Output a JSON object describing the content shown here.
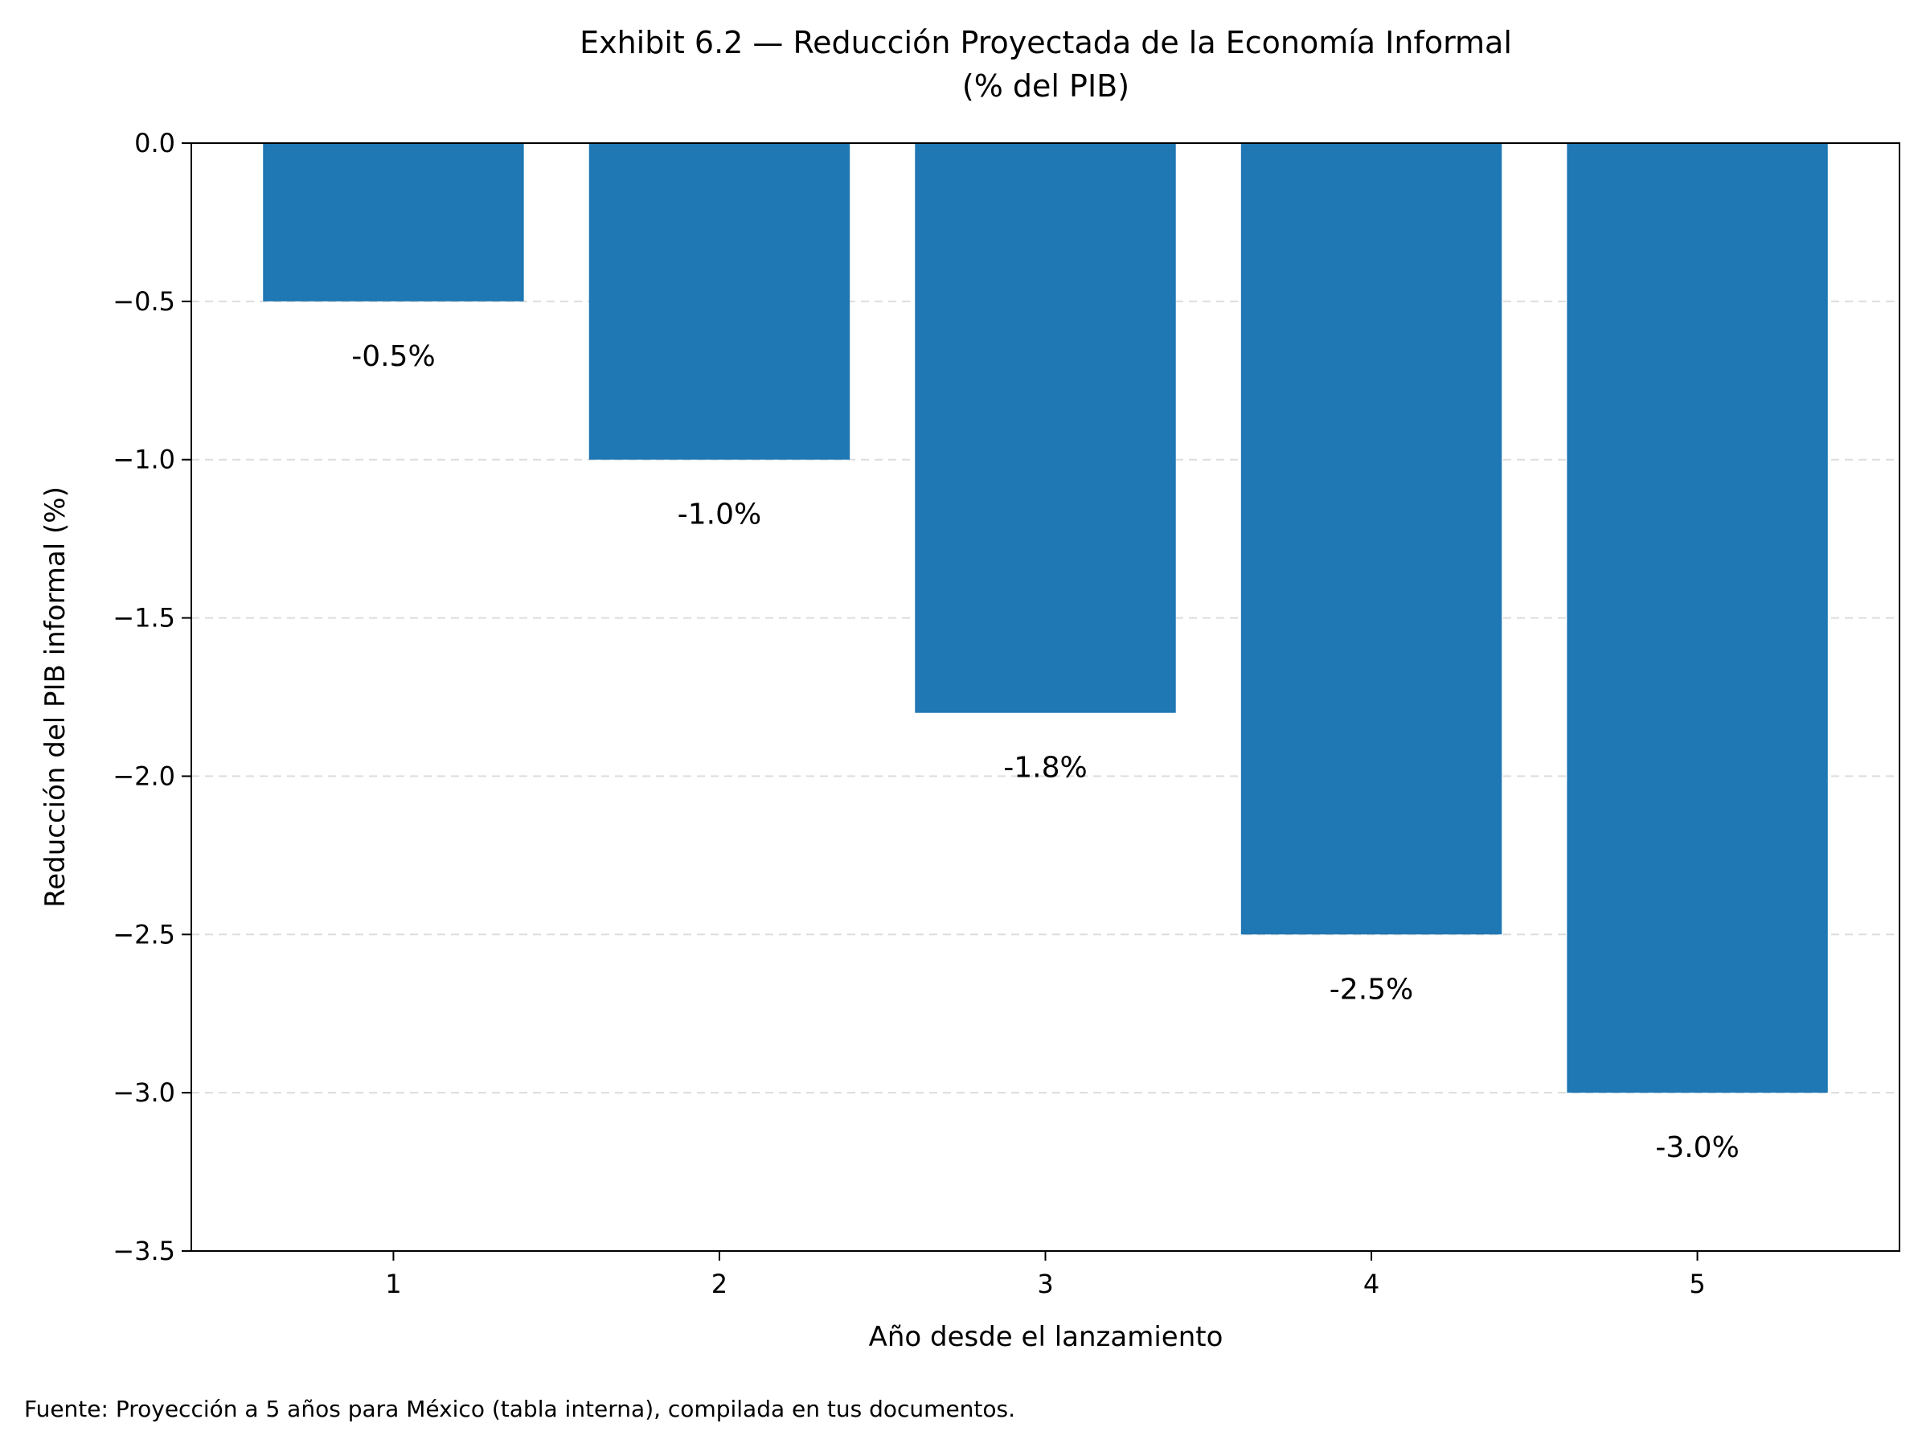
{
  "chart_data": {
    "type": "bar",
    "title": "Exhibit 6.2 — Reducción Proyectada de la Economía Informal",
    "subtitle": "(% del PIB)",
    "xlabel": "Año desde el lanzamiento",
    "ylabel": "Reducción del PIB informal (%)",
    "categories": [
      "1",
      "2",
      "3",
      "4",
      "5"
    ],
    "values": [
      -0.5,
      -1.0,
      -1.8,
      -2.5,
      -3.0
    ],
    "data_labels": [
      "-0.5%",
      "-1.0%",
      "-1.8%",
      "-2.5%",
      "-3.0%"
    ],
    "ylim": [
      -3.5,
      0.0
    ],
    "yticks": [
      0.0,
      -0.5,
      -1.0,
      -1.5,
      -2.0,
      -2.5,
      -3.0,
      -3.5
    ],
    "ytick_labels": [
      "0.0",
      "−0.5",
      "−1.0",
      "−1.5",
      "−2.0",
      "−2.5",
      "−3.0",
      "−3.5"
    ],
    "grid": "y-dashed",
    "bar_color": "#1f77b4",
    "grid_color": "#dddddd"
  },
  "footer": {
    "source": "Fuente: Proyección a 5 años para México (tabla interna), compilada en tus documentos."
  }
}
